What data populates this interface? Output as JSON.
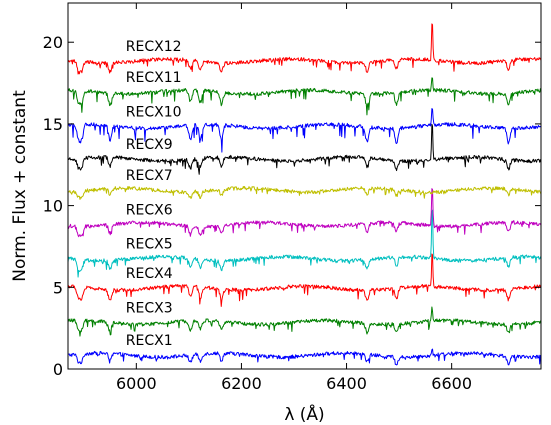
{
  "chart_data": {
    "type": "line",
    "xlabel": "λ (Å)",
    "ylabel": "Norm. Flux + constant",
    "xlim": [
      5870,
      6770
    ],
    "ylim": [
      0,
      22.4
    ],
    "xticks": [
      6000,
      6200,
      6400,
      6600
    ],
    "yticks": [
      0,
      5,
      10,
      15,
      20
    ],
    "grid": false,
    "series": [
      {
        "name": "RECX1",
        "color": "#0000ff",
        "offset": 0.85,
        "halpha": 0.5,
        "depth": 0.25,
        "label_x": 5980
      },
      {
        "name": "RECX3",
        "color": "#008000",
        "offset": 2.85,
        "halpha": 0.9,
        "depth": 0.3,
        "label_x": 5980
      },
      {
        "name": "RECX4",
        "color": "#ff0000",
        "offset": 4.95,
        "halpha": 2.2,
        "depth": 0.35,
        "label_x": 5980
      },
      {
        "name": "RECX5",
        "color": "#00bfbf",
        "offset": 6.75,
        "halpha": 3.4,
        "depth": 0.3,
        "label_x": 5980
      },
      {
        "name": "RECX6",
        "color": "#bf00bf",
        "offset": 8.85,
        "halpha": 2.6,
        "depth": 0.3,
        "label_x": 5980
      },
      {
        "name": "RECX7",
        "color": "#bfbf00",
        "offset": 10.95,
        "halpha": 0.0,
        "depth": 0.2,
        "label_x": 5980
      },
      {
        "name": "RECX9",
        "color": "#000000",
        "offset": 12.85,
        "halpha": 2.4,
        "depth": 0.3,
        "label_x": 5980
      },
      {
        "name": "RECX10",
        "color": "#0000ff",
        "offset": 14.85,
        "halpha": 1.1,
        "depth": 0.5,
        "label_x": 5980
      },
      {
        "name": "RECX11",
        "color": "#008000",
        "offset": 16.95,
        "halpha": 0.8,
        "depth": 0.4,
        "label_x": 5980
      },
      {
        "name": "RECX12",
        "color": "#ff0000",
        "offset": 18.85,
        "halpha": 2.6,
        "depth": 0.3,
        "label_x": 5980
      }
    ]
  }
}
